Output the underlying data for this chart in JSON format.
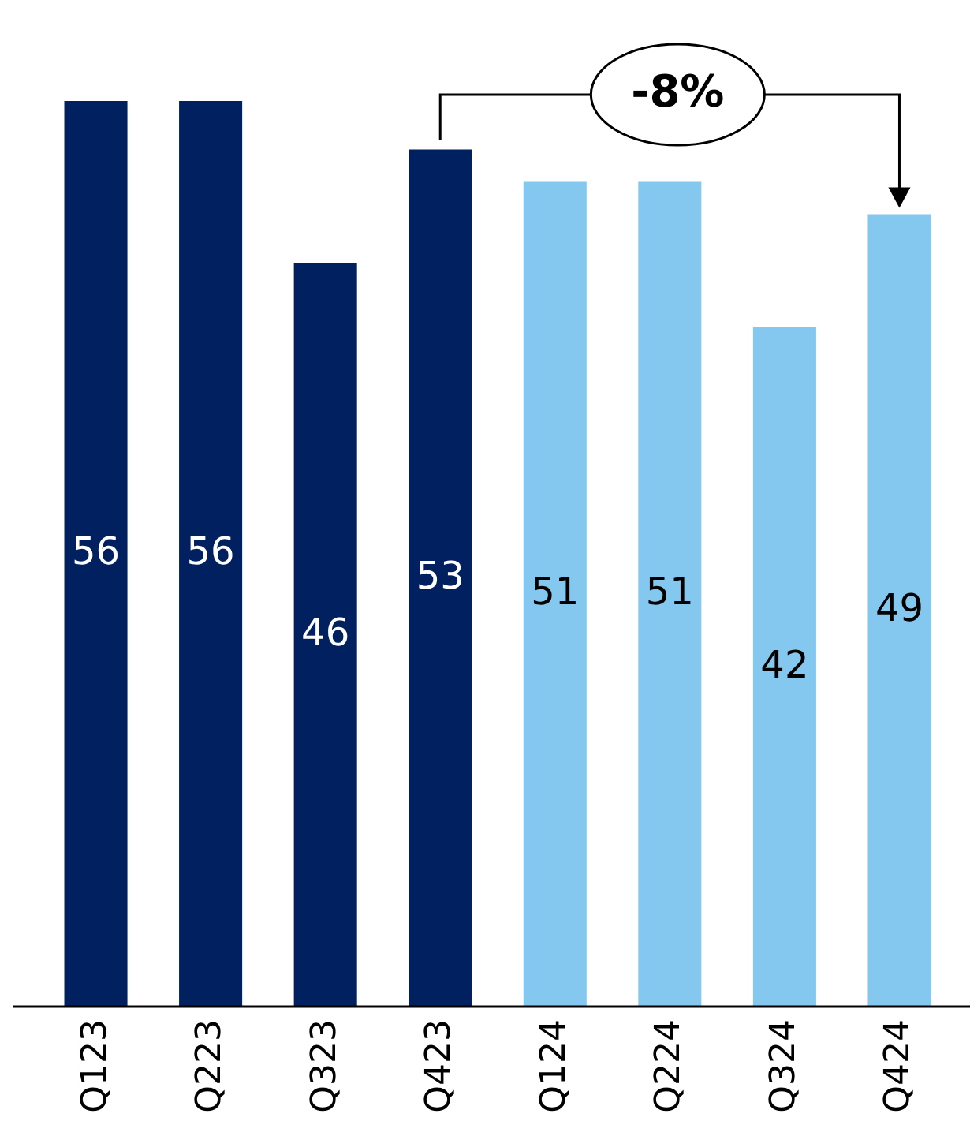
{
  "chart_data": {
    "type": "bar",
    "categories": [
      "Q123",
      "Q223",
      "Q323",
      "Q423",
      "Q124",
      "Q224",
      "Q324",
      "Q424"
    ],
    "values": [
      56,
      56,
      46,
      53,
      51,
      51,
      42,
      49
    ],
    "colors": [
      "#002060",
      "#002060",
      "#002060",
      "#002060",
      "#85c8ef",
      "#85c8ef",
      "#85c8ef",
      "#85c8ef"
    ],
    "data_labels": true,
    "annotations": [
      "-8%"
    ]
  }
}
